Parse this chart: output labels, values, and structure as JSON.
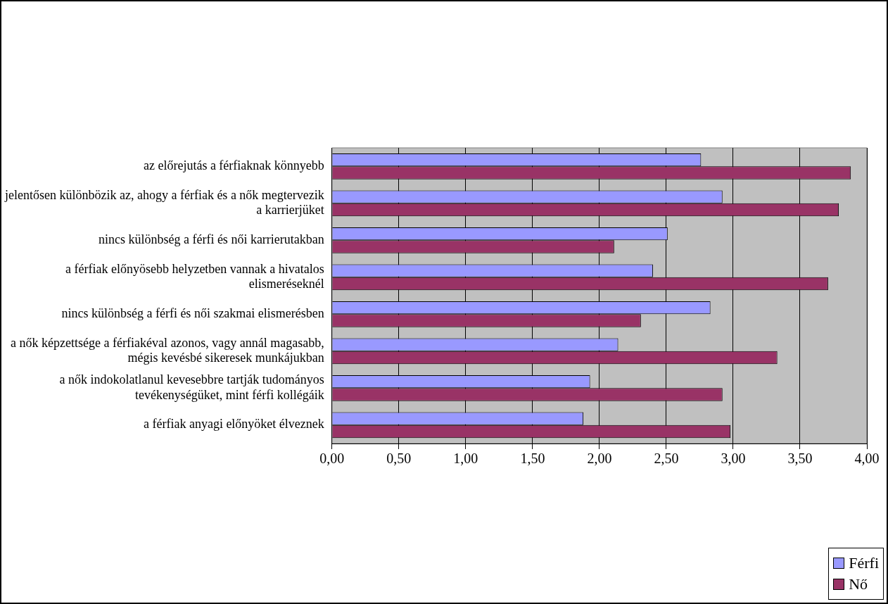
{
  "chart_data": {
    "type": "bar",
    "orientation": "horizontal",
    "categories": [
      "az előrejutás a férfiaknak könnyebb",
      "jelentősen különbözik az, ahogy a férfiak és a nők megtervezik a karrierjüket",
      "nincs különbség a férfi és női karrierutakban",
      "a férfiak előnyösebb helyzetben vannak a hivatalos elismeréseknél",
      "nincs különbség a férfi és női szakmai elismerésben",
      "a nők képzettsége a férfiakéval azonos, vagy annál magasabb, mégis kevésbé sikeresek munkájukban",
      "a nők indokolatlanul kevesebbre tartják tudományos tevékenységüket, mint férfi kollégáik",
      "a férfiak anyagi előnyöket élveznek"
    ],
    "series": [
      {
        "name": "Férfi",
        "color": "#9999ff",
        "values": [
          2.76,
          2.92,
          2.51,
          2.4,
          2.83,
          2.14,
          1.93,
          1.88
        ]
      },
      {
        "name": "Nő",
        "color": "#993366",
        "values": [
          3.88,
          3.79,
          2.11,
          3.71,
          2.31,
          3.33,
          2.92,
          2.98
        ]
      }
    ],
    "xlim": [
      0,
      4
    ],
    "xticks": [
      {
        "value": 0,
        "label": "0,00"
      },
      {
        "value": 0.5,
        "label": "0,50"
      },
      {
        "value": 1,
        "label": "1,00"
      },
      {
        "value": 1.5,
        "label": "1,50"
      },
      {
        "value": 2,
        "label": "2,00"
      },
      {
        "value": 2.5,
        "label": "2,50"
      },
      {
        "value": 3,
        "label": "3,00"
      },
      {
        "value": 3.5,
        "label": "3,50"
      },
      {
        "value": 4,
        "label": "4,00"
      }
    ],
    "grid": "x",
    "legend": "bottom right"
  }
}
